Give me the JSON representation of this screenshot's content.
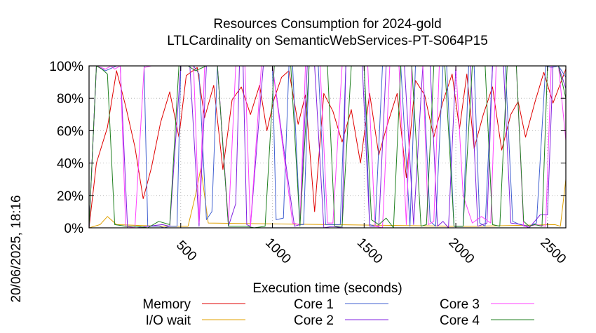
{
  "chart_data": {
    "type": "line",
    "title": "Resources Consumption for 2024-gold",
    "subtitle": "LTLCardinality on SemanticWebServices-PT-S064P15",
    "xlabel": "Execution time (seconds)",
    "ylabel": "",
    "side_label": "20/06/2025, 18:16",
    "xlim": [
      0,
      2600
    ],
    "ylim": [
      0,
      100
    ],
    "xticks": [
      500,
      1000,
      1500,
      2000,
      2500
    ],
    "yticks": [
      0,
      20,
      40,
      60,
      80,
      100
    ],
    "yticklabels": [
      "0%",
      "20%",
      "40%",
      "60%",
      "80%",
      "100%"
    ],
    "legend_position": "bottom",
    "series": [
      {
        "name": "Memory",
        "color": "#e00000",
        "points": [
          [
            0,
            0
          ],
          [
            40,
            40
          ],
          [
            100,
            62
          ],
          [
            150,
            97
          ],
          [
            200,
            75
          ],
          [
            250,
            50
          ],
          [
            295,
            18
          ],
          [
            340,
            37
          ],
          [
            390,
            65
          ],
          [
            440,
            84
          ],
          [
            490,
            56
          ],
          [
            530,
            94
          ],
          [
            590,
            99
          ],
          [
            630,
            68
          ],
          [
            680,
            88
          ],
          [
            730,
            36
          ],
          [
            780,
            79
          ],
          [
            830,
            87
          ],
          [
            880,
            70
          ],
          [
            930,
            88
          ],
          [
            970,
            60
          ],
          [
            1010,
            80
          ],
          [
            1050,
            93
          ],
          [
            1090,
            97
          ],
          [
            1140,
            64
          ],
          [
            1180,
            82
          ],
          [
            1230,
            10
          ],
          [
            1280,
            83
          ],
          [
            1330,
            72
          ],
          [
            1380,
            53
          ],
          [
            1430,
            73
          ],
          [
            1480,
            40
          ],
          [
            1530,
            83
          ],
          [
            1580,
            45
          ],
          [
            1630,
            65
          ],
          [
            1680,
            83
          ],
          [
            1730,
            31
          ],
          [
            1780,
            91
          ],
          [
            1830,
            82
          ],
          [
            1880,
            56
          ],
          [
            1930,
            78
          ],
          [
            1980,
            95
          ],
          [
            2020,
            61
          ],
          [
            2060,
            95
          ],
          [
            2100,
            49
          ],
          [
            2150,
            70
          ],
          [
            2200,
            87
          ],
          [
            2250,
            48
          ],
          [
            2300,
            70
          ],
          [
            2340,
            78
          ],
          [
            2380,
            56
          ],
          [
            2430,
            77
          ],
          [
            2480,
            96
          ],
          [
            2530,
            77
          ],
          [
            2600,
            98
          ]
        ]
      },
      {
        "name": "I/O wait",
        "color": "#e0a000",
        "points": [
          [
            0,
            0
          ],
          [
            60,
            2
          ],
          [
            100,
            7
          ],
          [
            150,
            2
          ],
          [
            400,
            1
          ],
          [
            540,
            1
          ],
          [
            580,
            20
          ],
          [
            610,
            37
          ],
          [
            650,
            3
          ],
          [
            2000,
            1
          ],
          [
            2100,
            1
          ],
          [
            2540,
            2
          ],
          [
            2570,
            1
          ],
          [
            2600,
            30
          ]
        ]
      },
      {
        "name": "Core 1",
        "color": "#4060d0",
        "points": [
          [
            0,
            0
          ],
          [
            40,
            100
          ],
          [
            90,
            97
          ],
          [
            150,
            100
          ],
          [
            300,
            100
          ],
          [
            320,
            1
          ],
          [
            380,
            1
          ],
          [
            410,
            0
          ],
          [
            440,
            1
          ],
          [
            480,
            1
          ],
          [
            500,
            100
          ],
          [
            550,
            100
          ],
          [
            570,
            100
          ],
          [
            600,
            95
          ],
          [
            640,
            5
          ],
          [
            670,
            10
          ],
          [
            700,
            100
          ],
          [
            1000,
            100
          ],
          [
            1020,
            5
          ],
          [
            1060,
            6
          ],
          [
            1090,
            100
          ],
          [
            1110,
            100
          ],
          [
            1150,
            2
          ],
          [
            1170,
            2
          ],
          [
            1200,
            100
          ],
          [
            1250,
            100
          ],
          [
            1290,
            2
          ],
          [
            1320,
            2
          ],
          [
            1370,
            2
          ],
          [
            1400,
            100
          ],
          [
            1460,
            100
          ],
          [
            1500,
            100
          ],
          [
            1530,
            2
          ],
          [
            1560,
            1
          ],
          [
            1600,
            100
          ],
          [
            1700,
            100
          ],
          [
            1750,
            1
          ],
          [
            1780,
            100
          ],
          [
            1820,
            100
          ],
          [
            1860,
            4
          ],
          [
            1890,
            1
          ],
          [
            1930,
            100
          ],
          [
            1950,
            100
          ],
          [
            1990,
            1
          ],
          [
            2040,
            1
          ],
          [
            2070,
            100
          ],
          [
            2100,
            100
          ],
          [
            2130,
            3
          ],
          [
            2160,
            1
          ],
          [
            2200,
            100
          ],
          [
            2250,
            100
          ],
          [
            2270,
            100
          ],
          [
            2310,
            4
          ],
          [
            2350,
            2
          ],
          [
            2400,
            1
          ],
          [
            2440,
            3
          ],
          [
            2490,
            100
          ],
          [
            2520,
            99
          ],
          [
            2560,
            100
          ],
          [
            2600,
            93
          ]
        ]
      },
      {
        "name": "Core 2",
        "color": "#8020e0",
        "points": [
          [
            0,
            0
          ],
          [
            40,
            100
          ],
          [
            110,
            100
          ],
          [
            170,
            100
          ],
          [
            210,
            0
          ],
          [
            260,
            0
          ],
          [
            320,
            1
          ],
          [
            400,
            2
          ],
          [
            440,
            1
          ],
          [
            500,
            100
          ],
          [
            550,
            100
          ],
          [
            600,
            1
          ],
          [
            640,
            100
          ],
          [
            700,
            100
          ],
          [
            760,
            1
          ],
          [
            800,
            15
          ],
          [
            820,
            100
          ],
          [
            840,
            100
          ],
          [
            860,
            2
          ],
          [
            880,
            1
          ],
          [
            950,
            100
          ],
          [
            1000,
            100
          ],
          [
            1120,
            1
          ],
          [
            1150,
            2
          ],
          [
            1190,
            100
          ],
          [
            1230,
            100
          ],
          [
            1280,
            0
          ],
          [
            1330,
            1
          ],
          [
            1380,
            0
          ],
          [
            1400,
            100
          ],
          [
            1460,
            100
          ],
          [
            1490,
            100
          ],
          [
            1530,
            1
          ],
          [
            1580,
            1
          ],
          [
            1620,
            100
          ],
          [
            1720,
            100
          ],
          [
            1770,
            2
          ],
          [
            1820,
            100
          ],
          [
            1860,
            100
          ],
          [
            1900,
            1
          ],
          [
            1930,
            4
          ],
          [
            1960,
            0
          ],
          [
            2000,
            100
          ],
          [
            2080,
            100
          ],
          [
            2120,
            1
          ],
          [
            2170,
            3
          ],
          [
            2200,
            100
          ],
          [
            2260,
            100
          ],
          [
            2300,
            3
          ],
          [
            2360,
            2
          ],
          [
            2400,
            0
          ],
          [
            2460,
            8
          ],
          [
            2500,
            8
          ],
          [
            2530,
            100
          ],
          [
            2560,
            100
          ],
          [
            2600,
            86
          ]
        ]
      },
      {
        "name": "Core 3",
        "color": "#ff40ff",
        "points": [
          [
            0,
            0
          ],
          [
            40,
            100
          ],
          [
            90,
            98
          ],
          [
            120,
            100
          ],
          [
            140,
            98
          ],
          [
            170,
            100
          ],
          [
            200,
            1
          ],
          [
            250,
            0
          ],
          [
            300,
            99
          ],
          [
            340,
            100
          ],
          [
            420,
            100
          ],
          [
            520,
            100
          ],
          [
            570,
            100
          ],
          [
            600,
            3
          ],
          [
            630,
            100
          ],
          [
            700,
            100
          ],
          [
            760,
            3
          ],
          [
            800,
            100
          ],
          [
            850,
            100
          ],
          [
            880,
            1
          ],
          [
            940,
            100
          ],
          [
            1000,
            100
          ],
          [
            1110,
            3
          ],
          [
            1150,
            2
          ],
          [
            1180,
            100
          ],
          [
            1260,
            100
          ],
          [
            1300,
            3
          ],
          [
            1330,
            3
          ],
          [
            1380,
            100
          ],
          [
            1470,
            100
          ],
          [
            1520,
            100
          ],
          [
            1560,
            1
          ],
          [
            1600,
            0
          ],
          [
            1640,
            100
          ],
          [
            1690,
            100
          ],
          [
            1730,
            2
          ],
          [
            1760,
            100
          ],
          [
            1820,
            100
          ],
          [
            1850,
            2
          ],
          [
            1880,
            4
          ],
          [
            1910,
            100
          ],
          [
            2000,
            100
          ],
          [
            2040,
            20
          ],
          [
            2090,
            3
          ],
          [
            2140,
            7
          ],
          [
            2190,
            3
          ],
          [
            2220,
            100
          ],
          [
            2330,
            100
          ],
          [
            2370,
            1
          ],
          [
            2400,
            1
          ],
          [
            2440,
            2
          ],
          [
            2490,
            1
          ],
          [
            2520,
            100
          ],
          [
            2560,
            100
          ],
          [
            2600,
            54
          ]
        ]
      },
      {
        "name": "Core 4",
        "color": "#208020",
        "points": [
          [
            0,
            0
          ],
          [
            40,
            100
          ],
          [
            70,
            98
          ],
          [
            100,
            95
          ],
          [
            140,
            2
          ],
          [
            200,
            1
          ],
          [
            260,
            1
          ],
          [
            320,
            0
          ],
          [
            380,
            4
          ],
          [
            440,
            2
          ],
          [
            490,
            100
          ],
          [
            540,
            100
          ],
          [
            580,
            97
          ],
          [
            640,
            100
          ],
          [
            700,
            100
          ],
          [
            760,
            1
          ],
          [
            820,
            1
          ],
          [
            860,
            1
          ],
          [
            900,
            0
          ],
          [
            960,
            1
          ],
          [
            1010,
            100
          ],
          [
            1100,
            100
          ],
          [
            1150,
            1
          ],
          [
            1200,
            100
          ],
          [
            1300,
            100
          ],
          [
            1340,
            1
          ],
          [
            1380,
            1
          ],
          [
            1430,
            100
          ],
          [
            1500,
            100
          ],
          [
            1540,
            5
          ],
          [
            1580,
            2
          ],
          [
            1620,
            6
          ],
          [
            1660,
            0
          ],
          [
            1700,
            100
          ],
          [
            1760,
            100
          ],
          [
            1810,
            1
          ],
          [
            1840,
            2
          ],
          [
            1880,
            100
          ],
          [
            1940,
            100
          ],
          [
            1990,
            1
          ],
          [
            2040,
            1
          ],
          [
            2090,
            100
          ],
          [
            2160,
            100
          ],
          [
            2200,
            2
          ],
          [
            2240,
            1
          ],
          [
            2280,
            100
          ],
          [
            2330,
            100
          ],
          [
            2370,
            4
          ],
          [
            2400,
            1
          ],
          [
            2430,
            2
          ],
          [
            2470,
            1
          ],
          [
            2500,
            100
          ],
          [
            2560,
            100
          ],
          [
            2600,
            80
          ]
        ]
      }
    ]
  }
}
